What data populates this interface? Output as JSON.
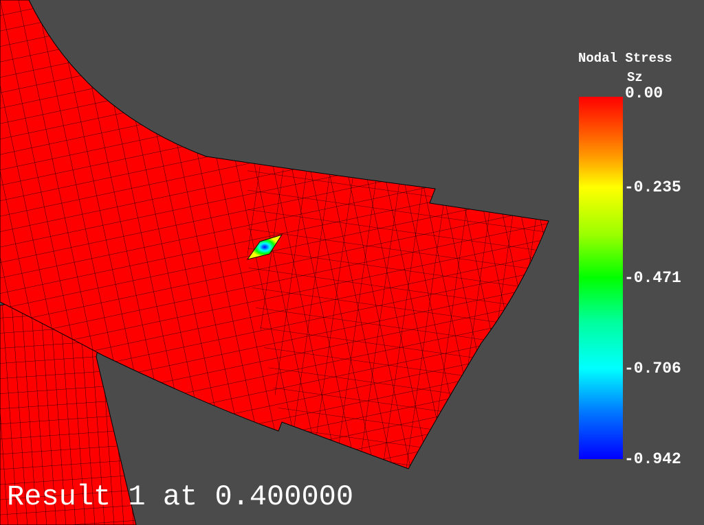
{
  "legend": {
    "title_line1": "Nodal Stress",
    "title_line2": "Sz",
    "min": -0.942,
    "max": 0.0,
    "ticks": [
      {
        "label": "0.00",
        "value": 0.0
      },
      {
        "label": "-0.235",
        "value": -0.235
      },
      {
        "label": "-0.471",
        "value": -0.471
      },
      {
        "label": "-0.706",
        "value": -0.706
      },
      {
        "label": "-0.942",
        "value": -0.942
      }
    ]
  },
  "status": {
    "text": "Result 1 at 0.400000"
  },
  "colors": {
    "background": "#4b4b4b",
    "mesh_fill": "#ff0000",
    "mesh_edge": "#000000",
    "text": "#ffffff"
  }
}
